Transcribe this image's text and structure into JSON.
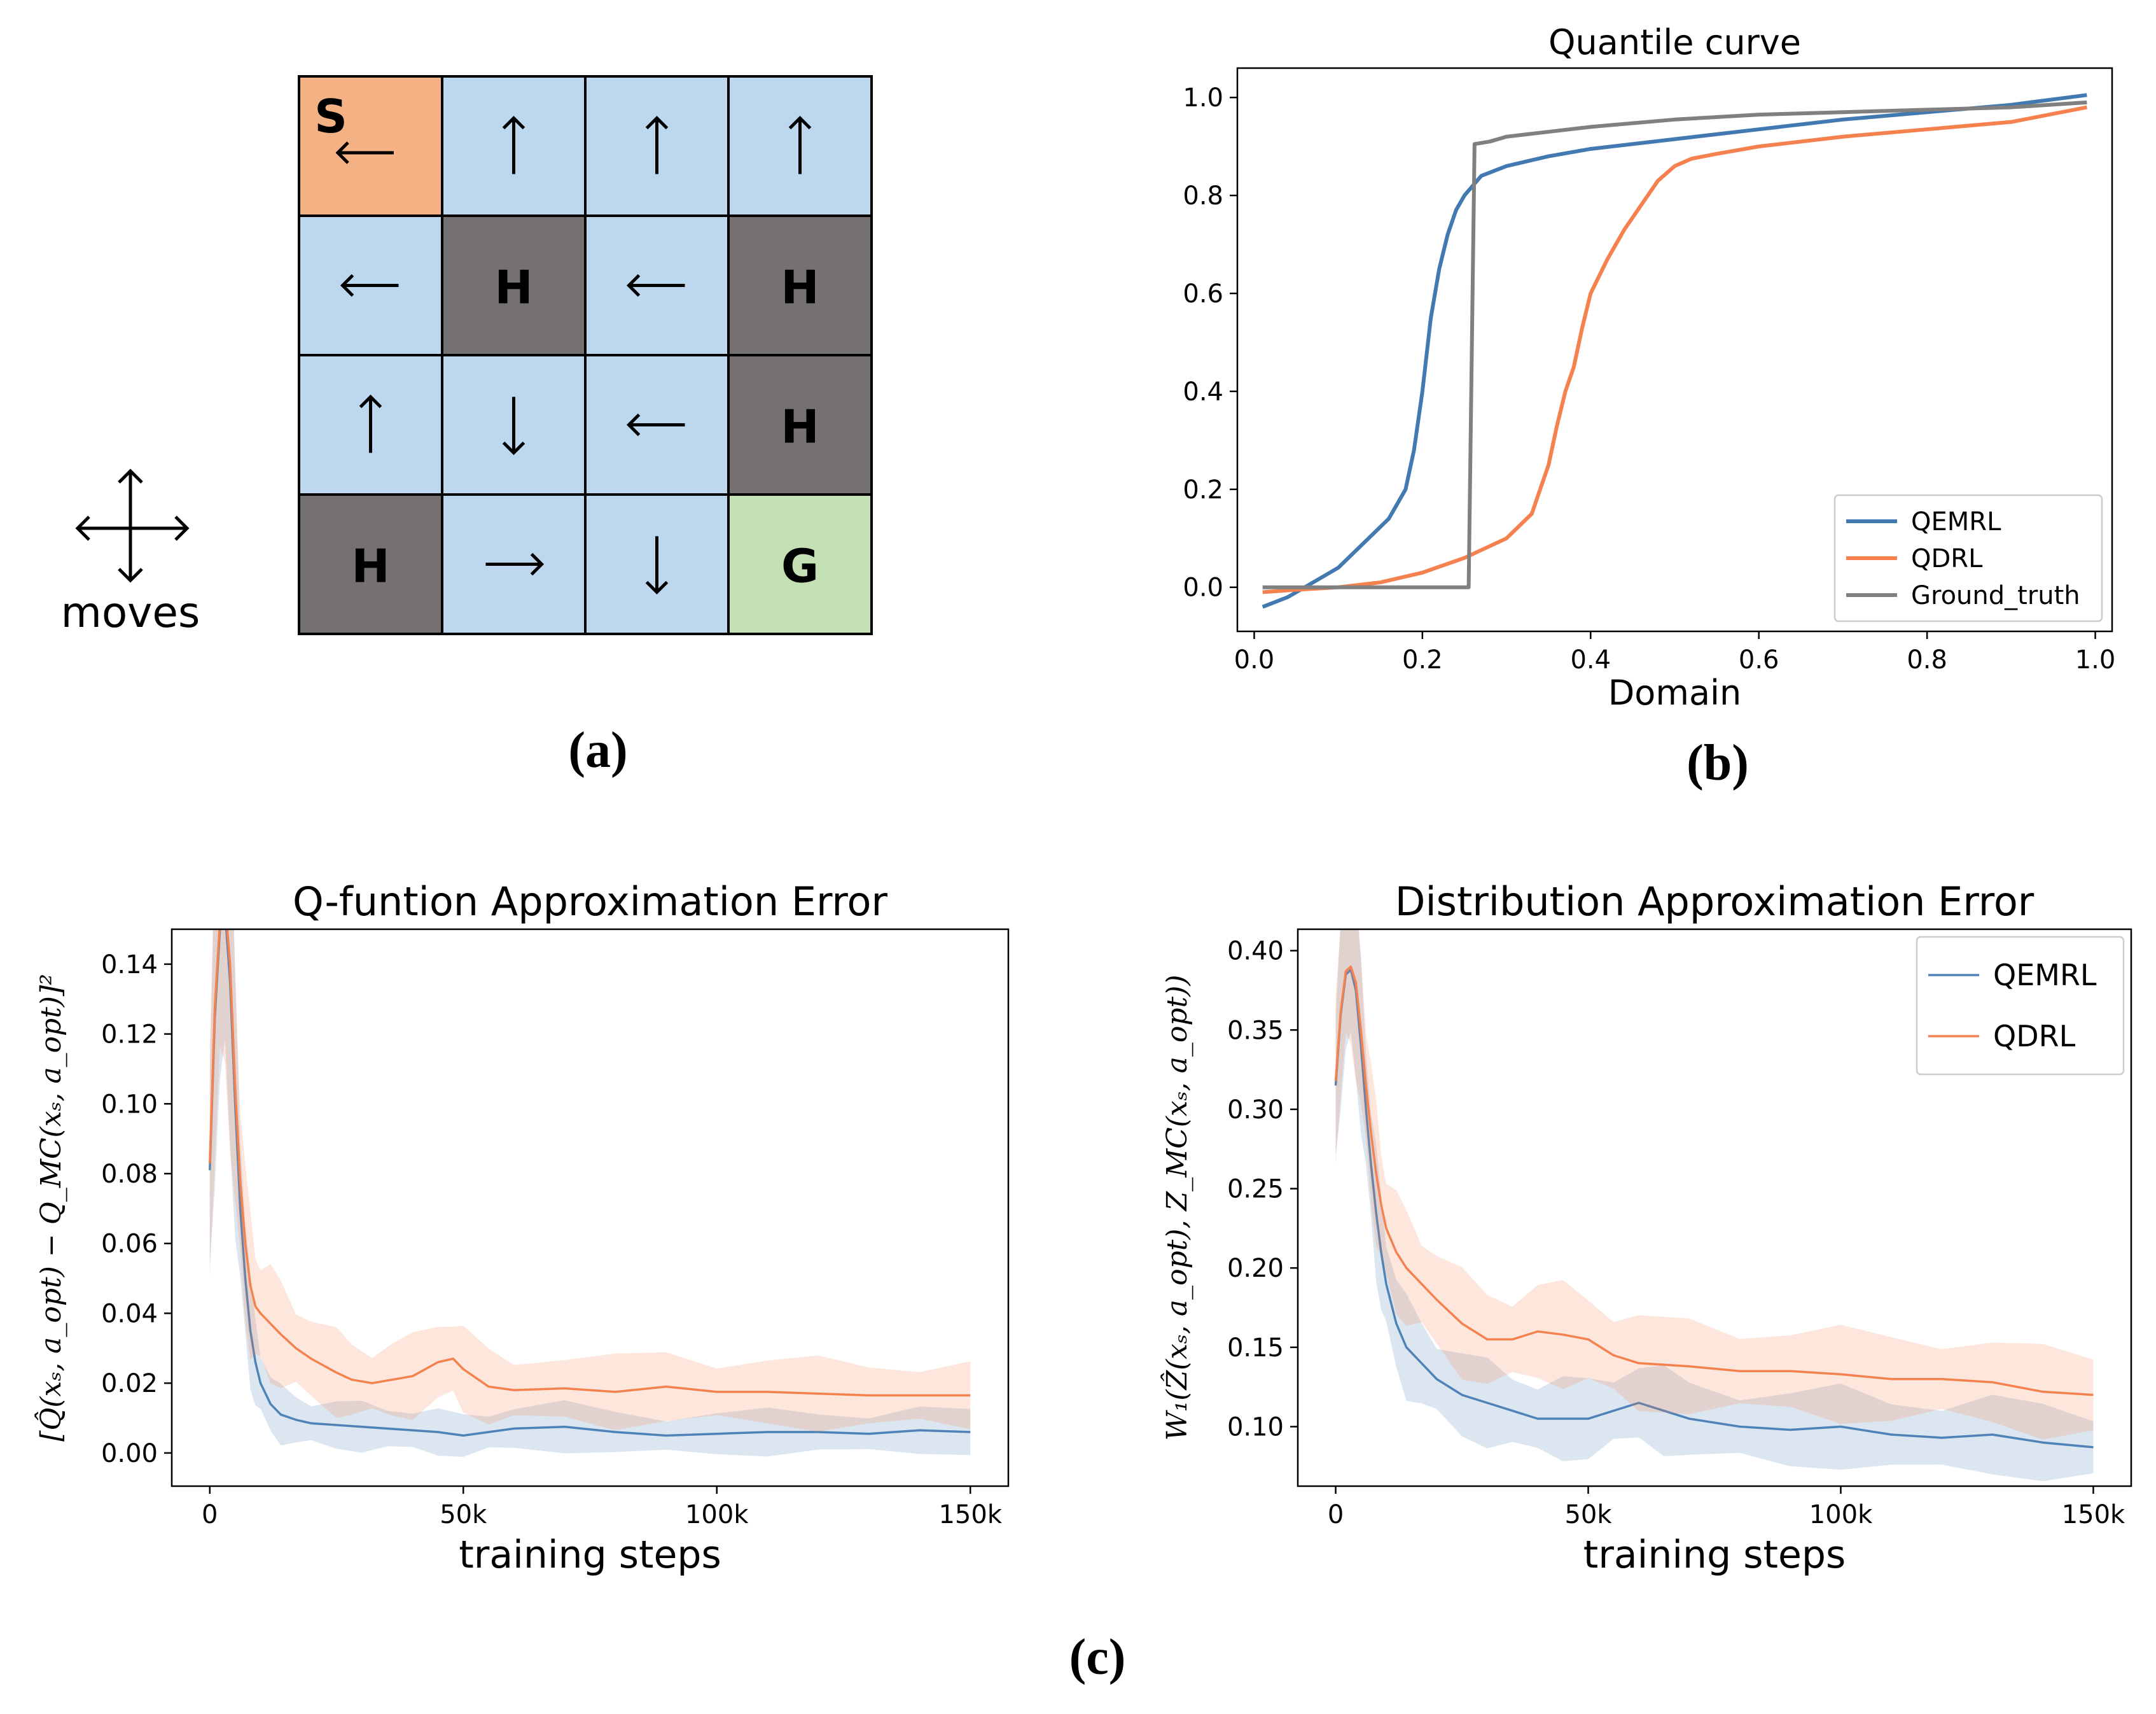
{
  "panel_a": {
    "caption": "(a)",
    "moves_label": "moves",
    "grid": [
      [
        {
          "type": "start",
          "label": "S",
          "arrow": "left"
        },
        {
          "type": "frozen",
          "arrow": "up"
        },
        {
          "type": "frozen",
          "arrow": "up"
        },
        {
          "type": "frozen",
          "arrow": "up"
        }
      ],
      [
        {
          "type": "frozen",
          "arrow": "left"
        },
        {
          "type": "hole",
          "label": "H"
        },
        {
          "type": "frozen",
          "arrow": "left"
        },
        {
          "type": "hole",
          "label": "H"
        }
      ],
      [
        {
          "type": "frozen",
          "arrow": "up"
        },
        {
          "type": "frozen",
          "arrow": "down"
        },
        {
          "type": "frozen",
          "arrow": "left"
        },
        {
          "type": "hole",
          "label": "H"
        }
      ],
      [
        {
          "type": "hole",
          "label": "H"
        },
        {
          "type": "frozen",
          "arrow": "right"
        },
        {
          "type": "frozen",
          "arrow": "down"
        },
        {
          "type": "goal",
          "label": "G"
        }
      ]
    ],
    "colors": {
      "start": "#f4b183",
      "frozen": "#bdd7ee",
      "hole": "#767171",
      "goal": "#c5e0b4"
    }
  },
  "panel_b": {
    "caption": "(b)"
  },
  "panel_c": {
    "caption": "(c)"
  },
  "chart_data": [
    {
      "id": "quantile",
      "type": "line",
      "title": "Quantile curve",
      "xlabel": "Domain",
      "ylabel": "",
      "xlim": [
        -0.02,
        1.02
      ],
      "ylim": [
        -0.09,
        1.06
      ],
      "xticks": [
        0.0,
        0.2,
        0.4,
        0.6,
        0.8,
        1.0
      ],
      "xtick_labels": [
        "0.0",
        "0.2",
        "0.4",
        "0.6",
        "0.8",
        "1.0"
      ],
      "yticks": [
        0.0,
        0.2,
        0.4,
        0.6,
        0.8,
        1.0
      ],
      "ytick_labels": [
        "0.0",
        "0.2",
        "0.4",
        "0.6",
        "0.8",
        "1.0"
      ],
      "legend": "lower-right",
      "series": [
        {
          "name": "QEMRL",
          "color": "#4279b0",
          "x": [
            0.01,
            0.04,
            0.07,
            0.1,
            0.13,
            0.16,
            0.18,
            0.19,
            0.2,
            0.21,
            0.22,
            0.23,
            0.24,
            0.25,
            0.26,
            0.27,
            0.3,
            0.35,
            0.4,
            0.5,
            0.6,
            0.7,
            0.8,
            0.9,
            0.99
          ],
          "y": [
            -0.04,
            -0.02,
            0.01,
            0.04,
            0.09,
            0.14,
            0.2,
            0.28,
            0.4,
            0.55,
            0.65,
            0.72,
            0.77,
            0.8,
            0.82,
            0.84,
            0.86,
            0.88,
            0.895,
            0.915,
            0.935,
            0.955,
            0.97,
            0.985,
            1.005
          ]
        },
        {
          "name": "QDRL",
          "color": "#f5814f",
          "x": [
            0.01,
            0.05,
            0.1,
            0.15,
            0.2,
            0.25,
            0.3,
            0.33,
            0.35,
            0.36,
            0.37,
            0.38,
            0.39,
            0.4,
            0.42,
            0.44,
            0.46,
            0.48,
            0.5,
            0.52,
            0.55,
            0.6,
            0.7,
            0.8,
            0.9,
            0.99
          ],
          "y": [
            -0.01,
            -0.005,
            0.0,
            0.01,
            0.03,
            0.06,
            0.1,
            0.15,
            0.25,
            0.33,
            0.4,
            0.45,
            0.53,
            0.6,
            0.67,
            0.73,
            0.78,
            0.83,
            0.86,
            0.875,
            0.885,
            0.9,
            0.92,
            0.935,
            0.95,
            0.98
          ]
        },
        {
          "name": "Ground_truth",
          "color": "#808080",
          "x": [
            0.01,
            0.255,
            0.262,
            0.28,
            0.3,
            0.35,
            0.4,
            0.5,
            0.6,
            0.7,
            0.8,
            0.9,
            0.99
          ],
          "y": [
            0.0,
            0.0,
            0.905,
            0.91,
            0.92,
            0.93,
            0.94,
            0.955,
            0.965,
            0.97,
            0.975,
            0.98,
            0.99
          ]
        }
      ]
    },
    {
      "id": "qerror",
      "type": "line",
      "title": "Q-funtion Approximation Error",
      "xlabel": "training steps",
      "ylabel": "[Q̂(xₛ, a_opt) − Q_MC(xₛ, a_opt)]²",
      "xlim": [
        -7500,
        157500
      ],
      "ylim": [
        -0.0095,
        0.15
      ],
      "xticks": [
        0,
        50000,
        100000,
        150000
      ],
      "xtick_labels": [
        "0",
        "50k",
        "100k",
        "150k"
      ],
      "yticks": [
        0.0,
        0.02,
        0.04,
        0.06,
        0.08,
        0.1,
        0.12,
        0.14
      ],
      "ytick_labels": [
        "0.00",
        "0.02",
        "0.04",
        "0.06",
        "0.08",
        "0.10",
        "0.12",
        "0.14"
      ],
      "legend": "none",
      "series": [
        {
          "name": "QEMRL",
          "color": "#4f83b8",
          "x": [
            0,
            1000,
            2000,
            3000,
            4000,
            5000,
            6000,
            7000,
            8000,
            9000,
            10000,
            12000,
            14000,
            17000,
            20000,
            25000,
            30000,
            35000,
            40000,
            45000,
            50000,
            55000,
            60000,
            70000,
            80000,
            90000,
            100000,
            110000,
            120000,
            130000,
            140000,
            150000
          ],
          "y": [
            0.081,
            0.125,
            0.15,
            0.155,
            0.135,
            0.1,
            0.07,
            0.05,
            0.035,
            0.026,
            0.02,
            0.014,
            0.011,
            0.0095,
            0.0085,
            0.008,
            0.0075,
            0.007,
            0.0065,
            0.006,
            0.005,
            0.006,
            0.007,
            0.0075,
            0.006,
            0.005,
            0.0055,
            0.006,
            0.006,
            0.0055,
            0.0065,
            0.006
          ]
        },
        {
          "name": "QDRL",
          "color": "#f4824f",
          "x": [
            0,
            1000,
            2000,
            3000,
            4000,
            5000,
            6000,
            7000,
            8000,
            9000,
            10000,
            12000,
            14000,
            17000,
            20000,
            25000,
            28000,
            32000,
            36000,
            40000,
            45000,
            48000,
            50000,
            55000,
            60000,
            70000,
            80000,
            90000,
            100000,
            110000,
            120000,
            130000,
            140000,
            150000
          ],
          "y": [
            0.083,
            0.128,
            0.152,
            0.158,
            0.14,
            0.105,
            0.078,
            0.06,
            0.048,
            0.042,
            0.04,
            0.037,
            0.034,
            0.03,
            0.027,
            0.023,
            0.021,
            0.02,
            0.021,
            0.022,
            0.026,
            0.027,
            0.024,
            0.019,
            0.018,
            0.0185,
            0.0175,
            0.019,
            0.0175,
            0.0175,
            0.017,
            0.0165,
            0.0165,
            0.0165
          ]
        }
      ]
    },
    {
      "id": "derror",
      "type": "line",
      "title": "Distribution Approximation Error",
      "xlabel": "training steps",
      "ylabel": "W₁(Ẑ(xₛ, a_opt), Z_MC(xₛ, a_opt))",
      "xlim": [
        -7500,
        157500
      ],
      "ylim": [
        0.0625,
        0.4135
      ],
      "xticks": [
        0,
        50000,
        100000,
        150000
      ],
      "xtick_labels": [
        "0",
        "50k",
        "100k",
        "150k"
      ],
      "yticks": [
        0.1,
        0.15,
        0.2,
        0.25,
        0.3,
        0.35,
        0.4
      ],
      "ytick_labels": [
        "0.10",
        "0.15",
        "0.20",
        "0.25",
        "0.30",
        "0.35",
        "0.40"
      ],
      "legend": "upper-right",
      "series": [
        {
          "name": "QEMRL",
          "color": "#4f83b8",
          "x": [
            0,
            1000,
            2000,
            3000,
            4000,
            5000,
            6000,
            7000,
            8000,
            9000,
            10000,
            12000,
            14000,
            17000,
            20000,
            25000,
            30000,
            35000,
            40000,
            45000,
            50000,
            55000,
            60000,
            65000,
            70000,
            80000,
            90000,
            100000,
            110000,
            120000,
            130000,
            140000,
            150000
          ],
          "y": [
            0.315,
            0.36,
            0.385,
            0.388,
            0.375,
            0.34,
            0.3,
            0.265,
            0.235,
            0.21,
            0.19,
            0.165,
            0.15,
            0.14,
            0.13,
            0.12,
            0.115,
            0.11,
            0.105,
            0.105,
            0.105,
            0.11,
            0.115,
            0.11,
            0.105,
            0.1,
            0.098,
            0.1,
            0.095,
            0.093,
            0.095,
            0.09,
            0.087
          ]
        },
        {
          "name": "QDRL",
          "color": "#f4824f",
          "x": [
            0,
            1000,
            2000,
            3000,
            4000,
            5000,
            6000,
            7000,
            8000,
            9000,
            10000,
            12000,
            14000,
            17000,
            20000,
            25000,
            30000,
            35000,
            40000,
            45000,
            50000,
            55000,
            60000,
            70000,
            80000,
            90000,
            100000,
            110000,
            120000,
            130000,
            140000,
            150000
          ],
          "y": [
            0.318,
            0.362,
            0.387,
            0.39,
            0.38,
            0.35,
            0.315,
            0.285,
            0.26,
            0.24,
            0.225,
            0.21,
            0.2,
            0.19,
            0.18,
            0.165,
            0.155,
            0.155,
            0.16,
            0.158,
            0.155,
            0.145,
            0.14,
            0.138,
            0.135,
            0.135,
            0.133,
            0.13,
            0.13,
            0.128,
            0.122,
            0.12
          ]
        }
      ]
    }
  ]
}
